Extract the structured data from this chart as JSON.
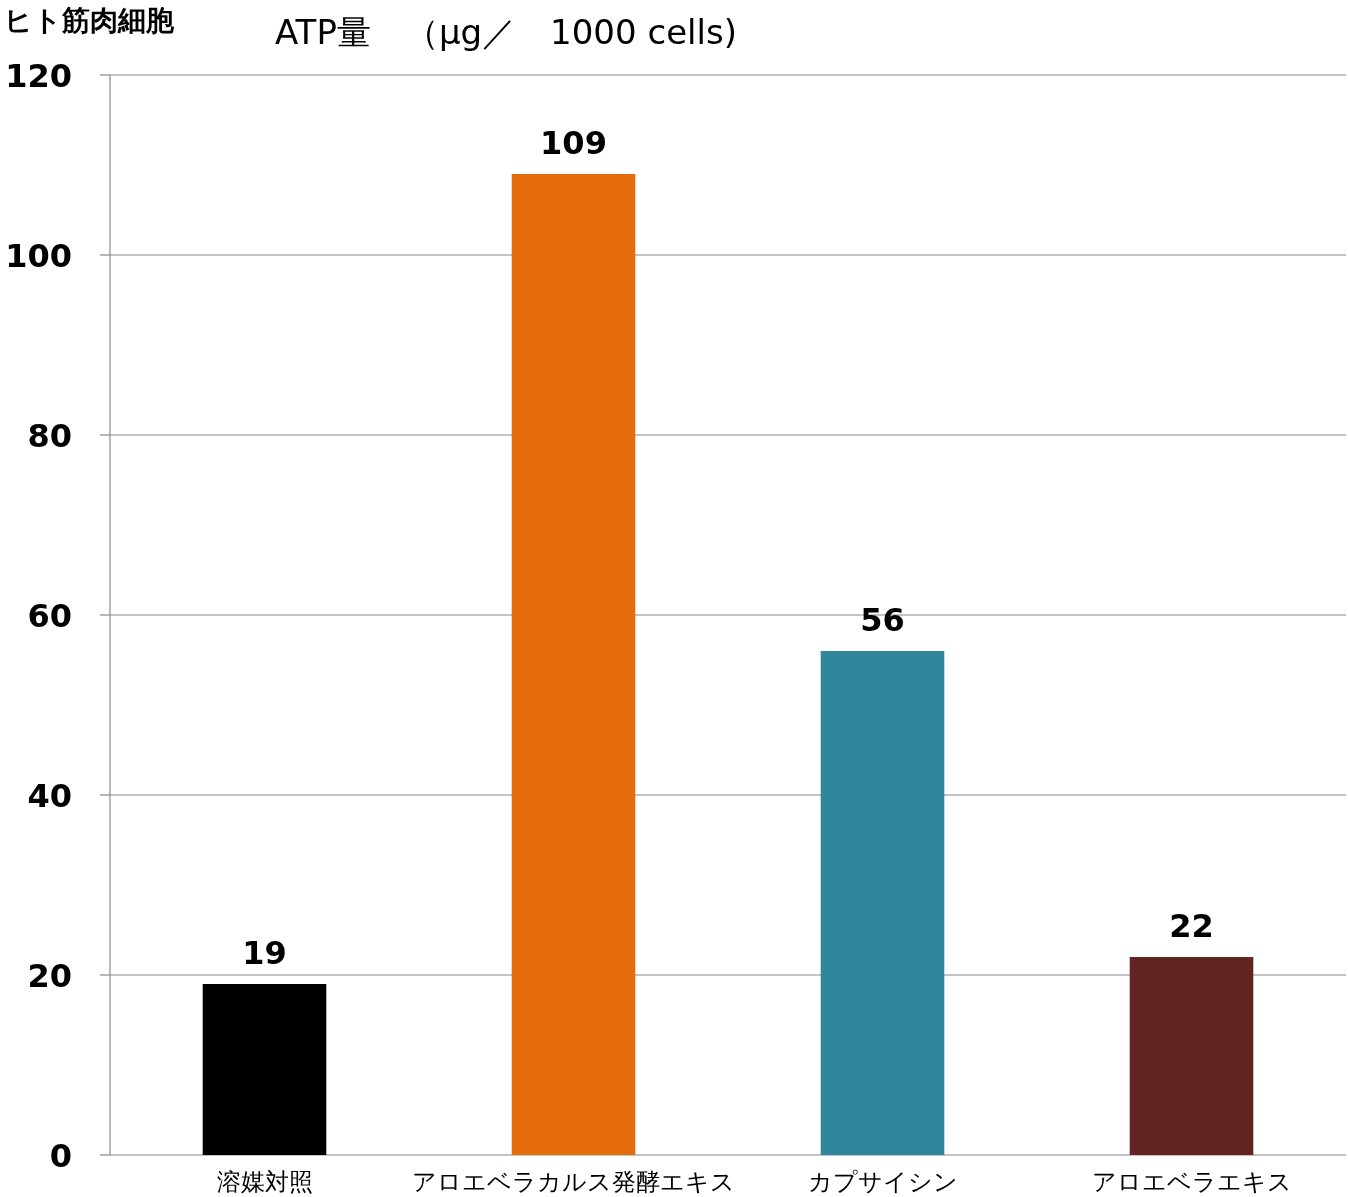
{
  "chart_data": {
    "type": "bar",
    "title": "ヒト筋肉細胞",
    "subtitle": "ATP量　（μg／　1000 cells)",
    "categories": [
      "溶媒対照",
      "アロエベラカルス発酵エキス",
      "カプサイシン",
      "アロエベラエキス"
    ],
    "values": [
      19,
      109,
      56,
      22
    ],
    "colors": [
      "#000000",
      "#e46c0a",
      "#31859c",
      "#632523"
    ],
    "ylim": [
      0,
      120
    ],
    "yticks": [
      0,
      20,
      40,
      60,
      80,
      100,
      120
    ],
    "grid": "y",
    "data_labels": true
  }
}
